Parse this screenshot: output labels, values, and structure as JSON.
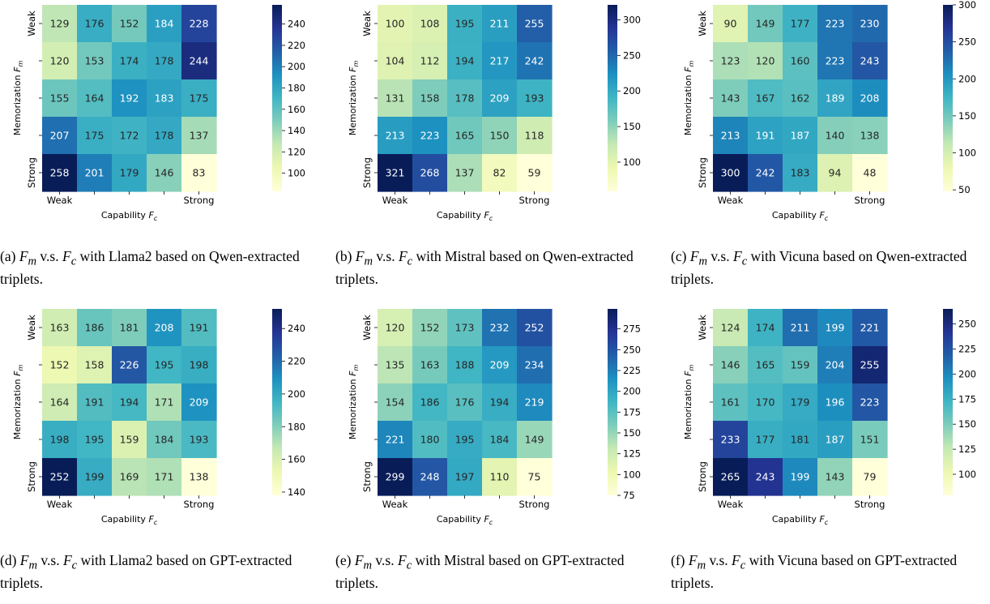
{
  "colors": {
    "scale": [
      "#ffffd9",
      "#edf8b1",
      "#c7e9b4",
      "#7fcdbb",
      "#41b6c4",
      "#1d91c0",
      "#225ea8",
      "#253494",
      "#081d58"
    ],
    "text_light": "#ffffff",
    "text_dark": "#262626"
  },
  "chart_data": [
    {
      "type": "heatmap",
      "caption": {
        "tag": "(a)",
        "rest": "with Llama2 based on Qwen-extracted triplets."
      },
      "ylabel": "Memorization",
      "ylabel_math": "F_m",
      "xlabel": "Capability",
      "xlabel_math": "F_c",
      "x_ticks": [
        "Weak",
        "",
        "",
        "",
        "Strong"
      ],
      "y_ticks": [
        "Weak",
        "",
        "",
        "",
        "Strong"
      ],
      "values": [
        [
          129,
          176,
          152,
          184,
          228
        ],
        [
          120,
          153,
          174,
          178,
          244
        ],
        [
          155,
          164,
          192,
          183,
          175
        ],
        [
          207,
          175,
          172,
          178,
          137
        ],
        [
          258,
          201,
          179,
          146,
          83
        ]
      ],
      "vmin": 83,
      "vmax": 258,
      "colorbar_ticks": [
        100,
        120,
        140,
        160,
        180,
        200,
        220,
        240
      ]
    },
    {
      "type": "heatmap",
      "caption": {
        "tag": "(b)",
        "rest": "with Mistral based on Qwen-extracted triplets."
      },
      "ylabel": "Memorization",
      "ylabel_math": "F_m",
      "xlabel": "Capability",
      "xlabel_math": "F_c",
      "x_ticks": [
        "Weak",
        "",
        "",
        "",
        "Strong"
      ],
      "y_ticks": [
        "Weak",
        "",
        "",
        "",
        "Strong"
      ],
      "values": [
        [
          100,
          108,
          195,
          211,
          255
        ],
        [
          104,
          112,
          194,
          217,
          242
        ],
        [
          131,
          158,
          178,
          209,
          193
        ],
        [
          213,
          223,
          165,
          150,
          118
        ],
        [
          321,
          268,
          137,
          82,
          59
        ]
      ],
      "vmin": 59,
      "vmax": 321,
      "colorbar_ticks": [
        100,
        150,
        200,
        250,
        300
      ]
    },
    {
      "type": "heatmap",
      "caption": {
        "tag": "(c)",
        "rest": "with Vicuna based on Qwen-extracted triplets."
      },
      "ylabel": "Memorization",
      "ylabel_math": "F_m",
      "xlabel": "Capability",
      "xlabel_math": "F_c",
      "x_ticks": [
        "Weak",
        "",
        "",
        "",
        "Strong"
      ],
      "y_ticks": [
        "Weak",
        "",
        "",
        "",
        "Strong"
      ],
      "values": [
        [
          90,
          149,
          177,
          223,
          230
        ],
        [
          123,
          120,
          160,
          223,
          243
        ],
        [
          143,
          167,
          162,
          189,
          208
        ],
        [
          213,
          191,
          187,
          140,
          138
        ],
        [
          300,
          242,
          183,
          94,
          48
        ]
      ],
      "vmin": 48,
      "vmax": 300,
      "colorbar_ticks": [
        50,
        100,
        150,
        200,
        250,
        300
      ]
    },
    {
      "type": "heatmap",
      "caption": {
        "tag": "(d)",
        "rest": "with Llama2 based on GPT-extracted triplets."
      },
      "ylabel": "Memorization",
      "ylabel_math": "F_m",
      "xlabel": "Capability",
      "xlabel_math": "F_c",
      "x_ticks": [
        "Weak",
        "",
        "",
        "",
        "Strong"
      ],
      "y_ticks": [
        "Weak",
        "",
        "",
        "",
        "Strong"
      ],
      "values": [
        [
          163,
          186,
          181,
          208,
          191
        ],
        [
          152,
          158,
          226,
          195,
          198
        ],
        [
          164,
          191,
          194,
          171,
          209
        ],
        [
          198,
          195,
          159,
          184,
          193
        ],
        [
          252,
          199,
          169,
          171,
          138
        ]
      ],
      "vmin": 138,
      "vmax": 252,
      "colorbar_ticks": [
        140,
        160,
        180,
        200,
        220,
        240
      ]
    },
    {
      "type": "heatmap",
      "caption": {
        "tag": "(e)",
        "rest": "with Mistral based on GPT-extracted triplets."
      },
      "ylabel": "Memorization",
      "ylabel_math": "F_m",
      "xlabel": "Capability",
      "xlabel_math": "F_c",
      "x_ticks": [
        "Weak",
        "",
        "",
        "",
        "Strong"
      ],
      "y_ticks": [
        "Weak",
        "",
        "",
        "",
        "Strong"
      ],
      "values": [
        [
          120,
          152,
          173,
          232,
          252
        ],
        [
          135,
          163,
          188,
          209,
          234
        ],
        [
          154,
          186,
          176,
          194,
          219
        ],
        [
          221,
          180,
          195,
          184,
          149
        ],
        [
          299,
          248,
          197,
          110,
          75
        ]
      ],
      "vmin": 75,
      "vmax": 299,
      "colorbar_ticks": [
        75,
        100,
        125,
        150,
        175,
        200,
        225,
        250,
        275
      ]
    },
    {
      "type": "heatmap",
      "caption": {
        "tag": "(f)",
        "rest": "with Vicuna based on GPT-extracted triplets."
      },
      "ylabel": "Memorization",
      "ylabel_math": "F_m",
      "xlabel": "Capability",
      "xlabel_math": "F_c",
      "x_ticks": [
        "Weak",
        "",
        "",
        "",
        "Strong"
      ],
      "y_ticks": [
        "Weak",
        "",
        "",
        "",
        "Strong"
      ],
      "values": [
        [
          124,
          174,
          211,
          199,
          221
        ],
        [
          146,
          165,
          159,
          204,
          255
        ],
        [
          161,
          170,
          179,
          196,
          223
        ],
        [
          233,
          177,
          181,
          187,
          151
        ],
        [
          265,
          243,
          199,
          143,
          79
        ]
      ],
      "vmin": 79,
      "vmax": 265,
      "colorbar_ticks": [
        100,
        125,
        150,
        175,
        200,
        225,
        250
      ]
    }
  ]
}
